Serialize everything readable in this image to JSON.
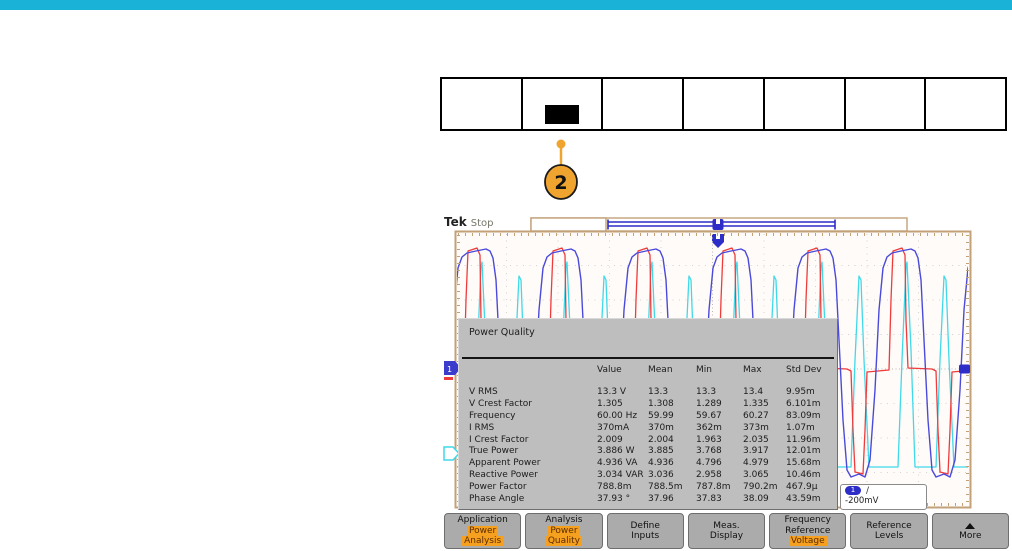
{
  "page": {
    "top_bar_color": "#1bb2d8"
  },
  "front_panel": {
    "cell_count": 7,
    "pressed_cell": 2,
    "callout_number": "2",
    "callout_color": "#f0a430"
  },
  "scope": {
    "brand": "Tek",
    "acq_status": "Stop",
    "measurement_panel": {
      "title": "Power Quality",
      "columns": [
        "Value",
        "Mean",
        "Min",
        "Max",
        "Std Dev"
      ],
      "rows": [
        [
          "V RMS",
          "13.3 V",
          "13.3",
          "13.3",
          "13.4",
          "9.95m"
        ],
        [
          "V Crest Factor",
          "1.305",
          "1.308",
          "1.289",
          "1.335",
          "6.101m"
        ],
        [
          "Frequency",
          "60.00 Hz",
          "59.99",
          "59.67",
          "60.27",
          "83.09m"
        ],
        [
          "I RMS",
          "370mA",
          "370m",
          "362m",
          "373m",
          "1.07m"
        ],
        [
          "I Crest Factor",
          "2.009",
          "2.004",
          "1.963",
          "2.035",
          "11.96m"
        ],
        [
          "True Power",
          "3.886 W",
          "3.885",
          "3.768",
          "3.917",
          "12.01m"
        ],
        [
          "Apparent Power",
          "4.936 VA",
          "4.936",
          "4.796",
          "4.979",
          "15.68m"
        ],
        [
          "Reactive Power",
          "3.034 VAR",
          "3.036",
          "2.958",
          "3.065",
          "10.46m"
        ],
        [
          "Power Factor",
          "788.8m",
          "788.5m",
          "787.8m",
          "790.2m",
          "467.9µ"
        ],
        [
          "Phase Angle",
          "37.93 °",
          "37.96",
          "37.83",
          "38.09",
          "43.59m"
        ]
      ]
    },
    "trigger_readout": {
      "channel": "1",
      "slope": "∕",
      "level": "-200mV"
    },
    "menu_buttons": [
      {
        "id": "application",
        "title_lines": [
          "Application"
        ],
        "selection_lines": [
          "Power",
          "Analysis"
        ]
      },
      {
        "id": "analysis",
        "title_lines": [
          "Analysis"
        ],
        "selection_lines": [
          "Power",
          "Quality"
        ]
      },
      {
        "id": "define-inputs",
        "title_lines": [
          "Define",
          "Inputs"
        ],
        "selection_lines": []
      },
      {
        "id": "meas-display",
        "title_lines": [
          "Meas.",
          "Display"
        ],
        "selection_lines": []
      },
      {
        "id": "frequency-reference",
        "title_lines": [
          "Frequency",
          "Reference"
        ],
        "selection_lines": [
          "Voltage"
        ]
      },
      {
        "id": "reference-levels",
        "title_lines": [
          "Reference",
          "Levels"
        ],
        "selection_lines": []
      },
      {
        "id": "more",
        "title_lines": [
          "More"
        ],
        "selection_lines": [],
        "icon": "up-triangle"
      }
    ],
    "colors": {
      "ch1_blue": "#4a4ada",
      "ch2_red": "#ee3b3b",
      "math_cyan": "#3fd9ea",
      "graticule_border": "#c2a179",
      "record_bar_blue": "#2d2dc8",
      "menu_highlight": "#f5a01e",
      "panel_gray": "#bebebe"
    }
  }
}
